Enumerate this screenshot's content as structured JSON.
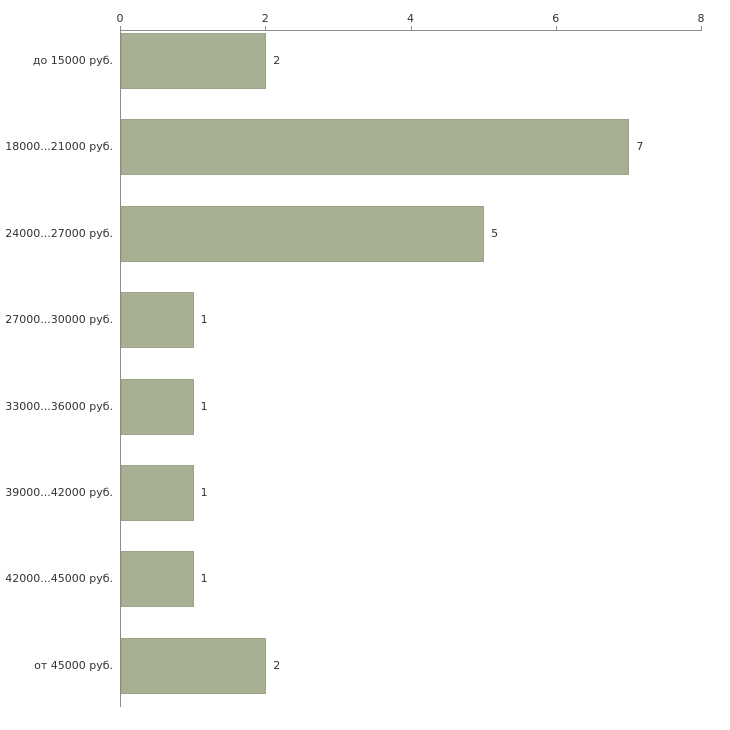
{
  "chart_data": {
    "type": "bar",
    "orientation": "horizontal",
    "title": "",
    "xlabel": "",
    "ylabel": "",
    "categories": [
      "до 15000 руб.",
      "18000...21000 руб.",
      "24000...27000 руб.",
      "27000...30000 руб.",
      "33000...36000 руб.",
      "39000...42000 руб.",
      "42000...45000 руб.",
      "от 45000 руб."
    ],
    "values": [
      2,
      7,
      5,
      1,
      1,
      1,
      1,
      2
    ],
    "value_labels": [
      "2",
      "7",
      "5",
      "1",
      "1",
      "1",
      "1",
      "2"
    ],
    "xlim": [
      0,
      8
    ],
    "x_ticks": [
      0,
      2,
      4,
      6,
      8
    ],
    "grid": false,
    "legend": false,
    "colors": {
      "bar_fill": "#a8b094",
      "bar_border": "#9ba487",
      "axis": "#8c8c8c",
      "text": "#333333",
      "background": "#ffffff"
    }
  },
  "layout_labels": {
    "chart_name": "salary-distribution-bar-chart"
  }
}
